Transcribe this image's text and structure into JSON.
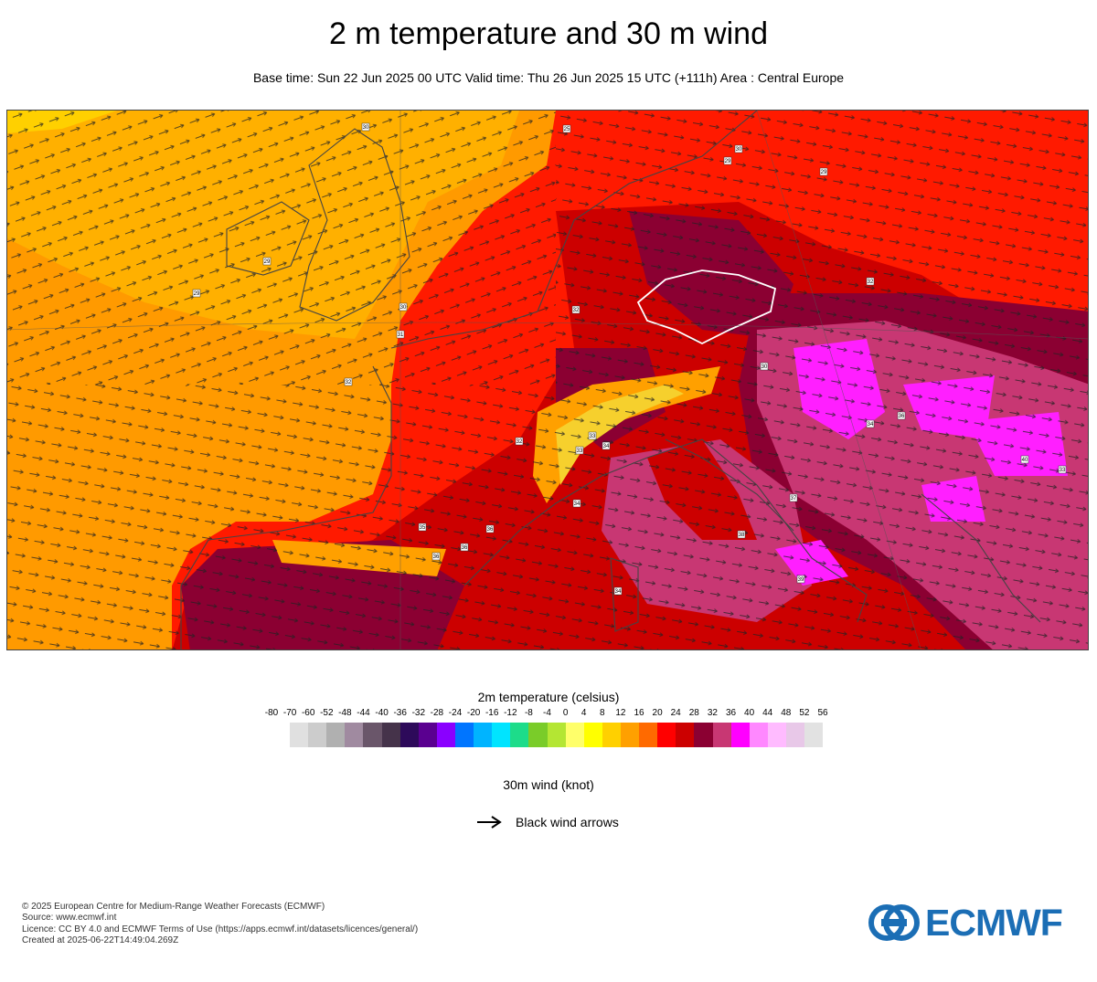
{
  "header": {
    "title": "2 m temperature and 30 m wind",
    "subtitle": "Base time: Sun 22 Jun 2025 00 UTC Valid time: Thu 26 Jun 2025 15 UTC (+111h) Area : Central Europe"
  },
  "map": {
    "area": "Central Europe",
    "station_labels": [
      "30",
      "25",
      "30",
      "29",
      "29",
      "29",
      "29",
      "30",
      "31",
      "32",
      "32",
      "32",
      "30",
      "34",
      "36",
      "32",
      "33",
      "33",
      "34",
      "34",
      "35",
      "36",
      "36",
      "36",
      "37",
      "38",
      "39",
      "40",
      "33",
      "34"
    ],
    "colors": {
      "cool_sea": "#ff9a00",
      "warm_sea": "#ffb000",
      "red": "#ff2a00",
      "deep_red": "#cc0000",
      "maroon": "#8b0032",
      "pink": "#c83773",
      "magenta": "#ff1fff",
      "yellow": "#f6d02d"
    }
  },
  "legend": {
    "title": "2m temperature (celsius)",
    "ticks": [
      "-80",
      "-70",
      "-60",
      "-52",
      "-48",
      "-44",
      "-40",
      "-36",
      "-32",
      "-28",
      "-24",
      "-20",
      "-16",
      "-12",
      "-8",
      "-4",
      "0",
      "4",
      "8",
      "12",
      "16",
      "20",
      "24",
      "28",
      "32",
      "36",
      "40",
      "44",
      "48",
      "52",
      "56"
    ],
    "colors": [
      "#e0e0e0",
      "#cccccc",
      "#b0b0b0",
      "#a08aa0",
      "#6a566a",
      "#45334a",
      "#2d0a5a",
      "#5a0090",
      "#8a00ff",
      "#0075ff",
      "#00b4ff",
      "#00e4ff",
      "#1ddc8a",
      "#7acc29",
      "#b4e633",
      "#ffff6a",
      "#ffff00",
      "#ffd000",
      "#ffa000",
      "#ff6a00",
      "#ff0000",
      "#cc0000",
      "#8b0032",
      "#c83773",
      "#ff00ff",
      "#ff88ff",
      "#ffbbff",
      "#e8c8e8",
      "#e2e2e2"
    ]
  },
  "wind": {
    "title": "30m wind (knot)",
    "arrow_label": "Black wind arrows"
  },
  "footer": {
    "line1": "© 2025 European Centre for Medium-Range Weather Forecasts (ECMWF)",
    "line2": "Source: www.ecmwf.int",
    "line3": "Licence: CC BY 4.0 and ECMWF Terms of Use (https://apps.ecmwf.int/datasets/licences/general/)",
    "line4": "Created at 2025-06-22T14:49:04.269Z"
  },
  "logo": {
    "text": "ECMWF",
    "color": "#1b6eb5"
  }
}
